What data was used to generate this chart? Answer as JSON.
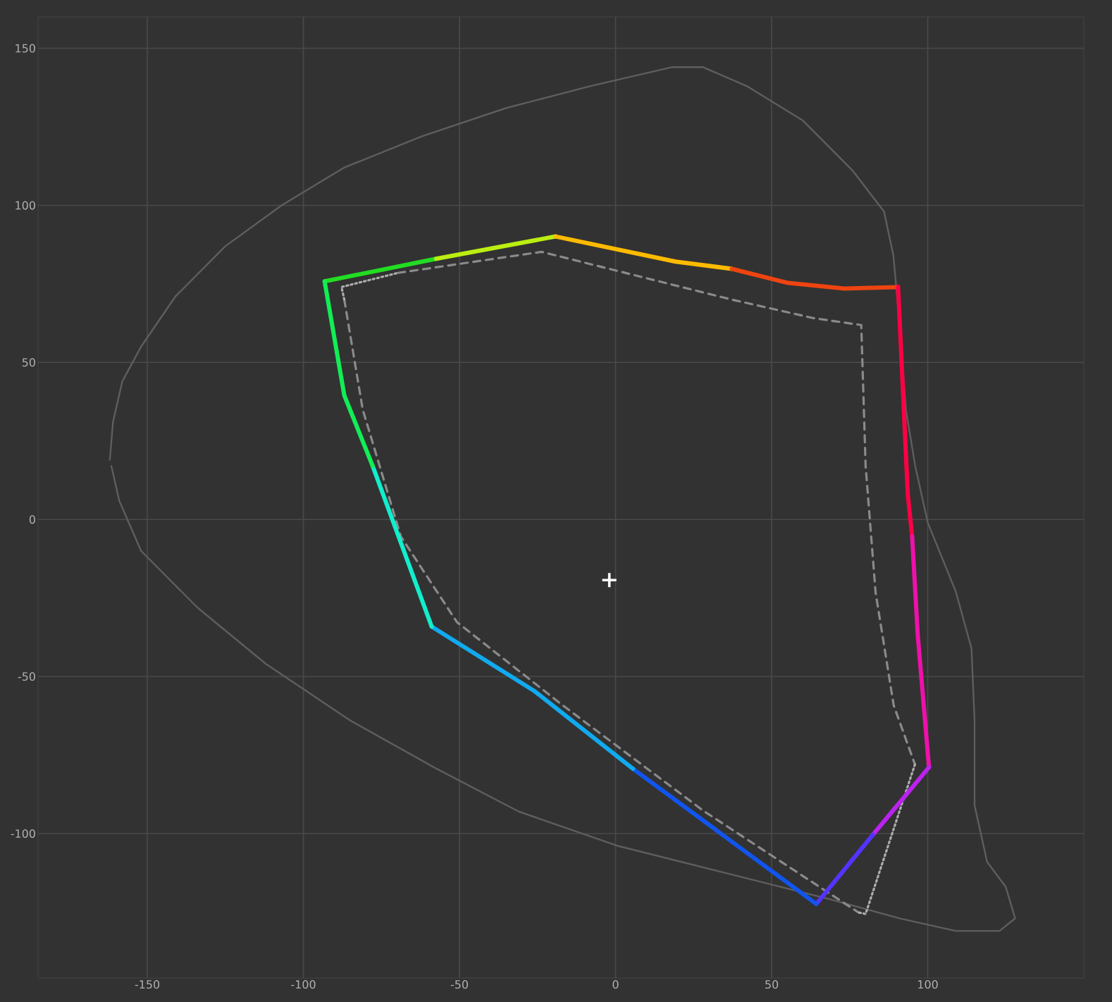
{
  "chart_data": {
    "type": "line",
    "xlim": [
      -185,
      150
    ],
    "ylim": [
      -146,
      160
    ],
    "xticks": [
      -150,
      -100,
      -50,
      0,
      50,
      100
    ],
    "yticks": [
      -100,
      -50,
      0,
      50,
      100,
      150
    ],
    "grid": true,
    "series": [
      {
        "color": "#5e5e5e",
        "line_style": "solid",
        "x": [
          -162,
          -161,
          -158,
          -152,
          -141,
          -125,
          -107,
          -87,
          -62,
          -35,
          -8,
          18,
          28,
          42,
          60,
          76,
          86,
          89,
          91,
          93,
          96,
          100,
          109,
          114,
          115,
          115,
          119,
          125,
          128,
          123,
          109,
          91,
          69,
          37,
          1,
          -31,
          -58,
          -85,
          -112,
          -134,
          -152,
          -159,
          -161.5
        ],
        "values": [
          19,
          31,
          44,
          55,
          71,
          87,
          100,
          112,
          122,
          131,
          138,
          144,
          144,
          138,
          127,
          111,
          98,
          84,
          62,
          35,
          17,
          -1,
          -23,
          -41,
          -64,
          -91,
          -109,
          -117,
          -127,
          -131,
          -131,
          -127,
          -121,
          -113,
          -104,
          -93,
          -79,
          -64,
          -46,
          -28,
          -10,
          6,
          17
        ]
      },
      {
        "color": "#8a8a8a",
        "line_style": "dashed",
        "x": [
          -69.7,
          -23.7,
          37.2,
          63.4,
          78.7,
          80.1,
          83.3,
          89.1,
          95.9
        ],
        "values": [
          78.5,
          85.2,
          70.0,
          64.1,
          61.9,
          17.0,
          -23.3,
          -59.2,
          -78.0
        ]
      },
      {
        "color": "#8a8a8a",
        "line_style": "dashed",
        "x": [
          -86.9,
          -81.0,
          -68.8,
          -50.8,
          -16.9,
          28.2,
          77.8
        ],
        "values": [
          70.0,
          35.0,
          -5.4,
          -32.7,
          -59.2,
          -92.8,
          -125.1
        ]
      },
      {
        "color": "#acacac",
        "line_style": "dotted",
        "x": [
          -86.9,
          -87.8,
          -69.7
        ],
        "values": [
          70.0,
          74.0,
          78.5
        ]
      },
      {
        "color": "#acacac",
        "line_style": "dotted",
        "x": [
          95.9,
          80.1,
          77.8
        ],
        "values": [
          -78.0,
          -125.6,
          -125.1
        ]
      },
      {
        "color": "#22dd22",
        "line_style": "solid",
        "x": [
          -93.2,
          -57.5
        ],
        "values": [
          75.8,
          83.0
        ]
      },
      {
        "color": "#bbee11",
        "line_style": "solid",
        "x": [
          -57.5,
          -19.2
        ],
        "values": [
          83.0,
          90.1
        ]
      },
      {
        "color": "#ffbb00",
        "line_style": "solid",
        "x": [
          -19.2,
          19.2,
          37.2
        ],
        "values": [
          90.1,
          82.1,
          79.8
        ]
      },
      {
        "color": "#ee4411",
        "line_style": "solid",
        "x": [
          37.2,
          55.3,
          73.3,
          90.5
        ],
        "values": [
          79.8,
          75.3,
          73.5,
          74.0
        ]
      },
      {
        "color": "#ff0044",
        "line_style": "solid",
        "x": [
          90.5,
          93.6,
          95.0
        ],
        "values": [
          74.0,
          8.1,
          -5.4
        ]
      },
      {
        "color": "#ee11aa",
        "line_style": "solid",
        "x": [
          95.0,
          96.8,
          100.4
        ],
        "values": [
          -5.4,
          -36.8,
          -78.9
        ]
      },
      {
        "color": "#bb22ee",
        "line_style": "solid",
        "x": [
          100.4,
          82.4
        ],
        "values": [
          -78.9,
          -100.4
        ]
      },
      {
        "color": "#5533ff",
        "line_style": "solid",
        "x": [
          82.4,
          64.3
        ],
        "values": [
          -100.4,
          -122.4
        ]
      },
      {
        "color": "#1155ee",
        "line_style": "solid",
        "x": [
          64.3,
          5.6
        ],
        "values": [
          -122.4,
          -79.4
        ]
      },
      {
        "color": "#11aaee",
        "line_style": "solid",
        "x": [
          5.6,
          -25.9,
          -58.9
        ],
        "values": [
          -79.4,
          -54.7,
          -34.1
        ]
      },
      {
        "color": "#11eecc",
        "line_style": "solid",
        "x": [
          -58.9,
          -77.8
        ],
        "values": [
          -34.1,
          17.0
        ]
      },
      {
        "color": "#11ee55",
        "line_style": "solid",
        "x": [
          -77.8,
          -86.9,
          -93.2
        ],
        "values": [
          17.0,
          39.5,
          75.8
        ]
      },
      {
        "type": "scatter",
        "marker": "cross",
        "color": "#ffffff",
        "x": [
          -2.0
        ],
        "values": [
          -19.3
        ]
      }
    ]
  }
}
